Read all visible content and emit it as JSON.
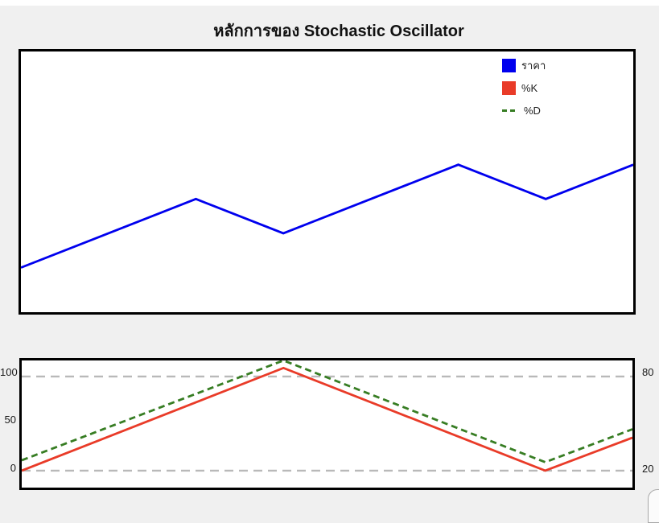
{
  "title": "หลักการของ Stochastic Oscillator",
  "colors": {
    "background": "#f0f0f0",
    "top_strip": "#ffffff",
    "plot_background": "#ffffff",
    "frame": "#000000",
    "price_line": "#0000ee",
    "k_line": "#e93b28",
    "d_line": "#377d23",
    "gridline": "#b9b9b9",
    "tick_text": "#1a1a1a"
  },
  "legend": {
    "items": [
      {
        "label": "ราคา",
        "color": "#0000ee",
        "swatch": "square"
      },
      {
        "label": "%K",
        "color": "#e93b28",
        "swatch": "square"
      },
      {
        "label": "%D",
        "color": "#377d23",
        "swatch": "dashes"
      }
    ]
  },
  "chart_data": [
    {
      "type": "line",
      "title": "หลักการของ Stochastic Oscillator",
      "xlabel": "",
      "ylabel": "",
      "axes_labels_visible": false,
      "grid": false,
      "legend_position": "upper right",
      "xlim": [
        0,
        7
      ],
      "ylim": [
        3.5,
        41.5
      ],
      "series": [
        {
          "name": "ราคา",
          "color": "#0000ee",
          "style": "solid",
          "x": [
            0,
            2,
            3,
            5,
            6,
            7
          ],
          "values": [
            10,
            20,
            15,
            25,
            20,
            25
          ]
        }
      ]
    },
    {
      "type": "line",
      "title": "",
      "xlabel": "",
      "ylabel": "",
      "grid": false,
      "xlim": [
        0,
        7
      ],
      "ylim": [
        -18,
        117
      ],
      "gridlines": [
        0,
        100
      ],
      "left_ticks": [
        {
          "value": 0,
          "label": "0"
        },
        {
          "value": 50,
          "label": "50"
        },
        {
          "value": 100,
          "label": "100"
        }
      ],
      "right_ticks": [
        {
          "value": 100,
          "label": "80"
        },
        {
          "value": 0,
          "label": "20"
        }
      ],
      "series": [
        {
          "name": "%K",
          "color": "#e93b28",
          "style": "solid",
          "x": [
            0,
            3,
            6,
            7
          ],
          "values": [
            0,
            109,
            0,
            35
          ]
        },
        {
          "name": "%D",
          "color": "#377d23",
          "style": "dashed",
          "x": [
            0,
            3,
            6,
            7
          ],
          "values": [
            11,
            117,
            9,
            44
          ]
        }
      ]
    }
  ]
}
